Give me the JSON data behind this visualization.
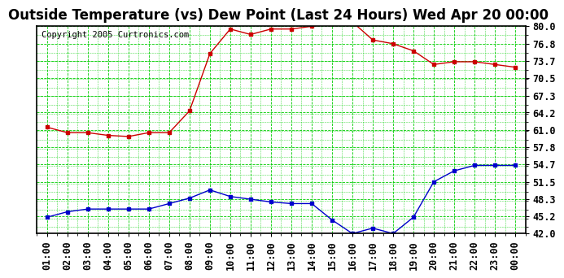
{
  "title": "Outside Temperature (vs) Dew Point (Last 24 Hours) Wed Apr 20 00:00",
  "copyright": "Copyright 2005 Curtronics.com",
  "x_labels": [
    "01:00",
    "02:00",
    "03:00",
    "04:00",
    "05:00",
    "06:00",
    "07:00",
    "08:00",
    "09:00",
    "10:00",
    "11:00",
    "12:00",
    "13:00",
    "14:00",
    "15:00",
    "16:00",
    "17:00",
    "18:00",
    "19:00",
    "20:00",
    "21:00",
    "22:00",
    "23:00",
    "00:00"
  ],
  "x_indices": [
    1,
    2,
    3,
    4,
    5,
    6,
    7,
    8,
    9,
    10,
    11,
    12,
    13,
    14,
    15,
    16,
    17,
    18,
    19,
    20,
    21,
    22,
    23,
    24
  ],
  "temp_red": [
    61.5,
    60.5,
    60.5,
    60.0,
    59.8,
    60.5,
    60.5,
    64.5,
    75.0,
    79.5,
    78.5,
    79.5,
    79.5,
    80.0,
    80.5,
    80.8,
    77.5,
    76.8,
    75.5,
    73.0,
    73.5,
    73.5,
    73.0,
    72.5
  ],
  "dew_blue": [
    45.0,
    46.0,
    46.5,
    46.5,
    46.5,
    46.5,
    47.5,
    48.5,
    50.0,
    48.8,
    48.3,
    47.8,
    47.5,
    47.5,
    44.5,
    42.0,
    43.0,
    42.0,
    45.0,
    51.5,
    53.5,
    54.5,
    54.5,
    54.5
  ],
  "y_ticks": [
    42.0,
    45.2,
    48.3,
    51.5,
    54.7,
    57.8,
    61.0,
    64.2,
    67.3,
    70.5,
    73.7,
    76.8,
    80.0
  ],
  "ylim": [
    42.0,
    80.0
  ],
  "xlim": [
    0.5,
    24.5
  ],
  "bg_color": "#ffffff",
  "plot_bg": "#ffffff",
  "grid_color": "#00cc00",
  "red_color": "#cc0000",
  "blue_color": "#0000cc",
  "title_fontsize": 12,
  "copyright_fontsize": 7.5,
  "tick_fontsize": 8.5
}
